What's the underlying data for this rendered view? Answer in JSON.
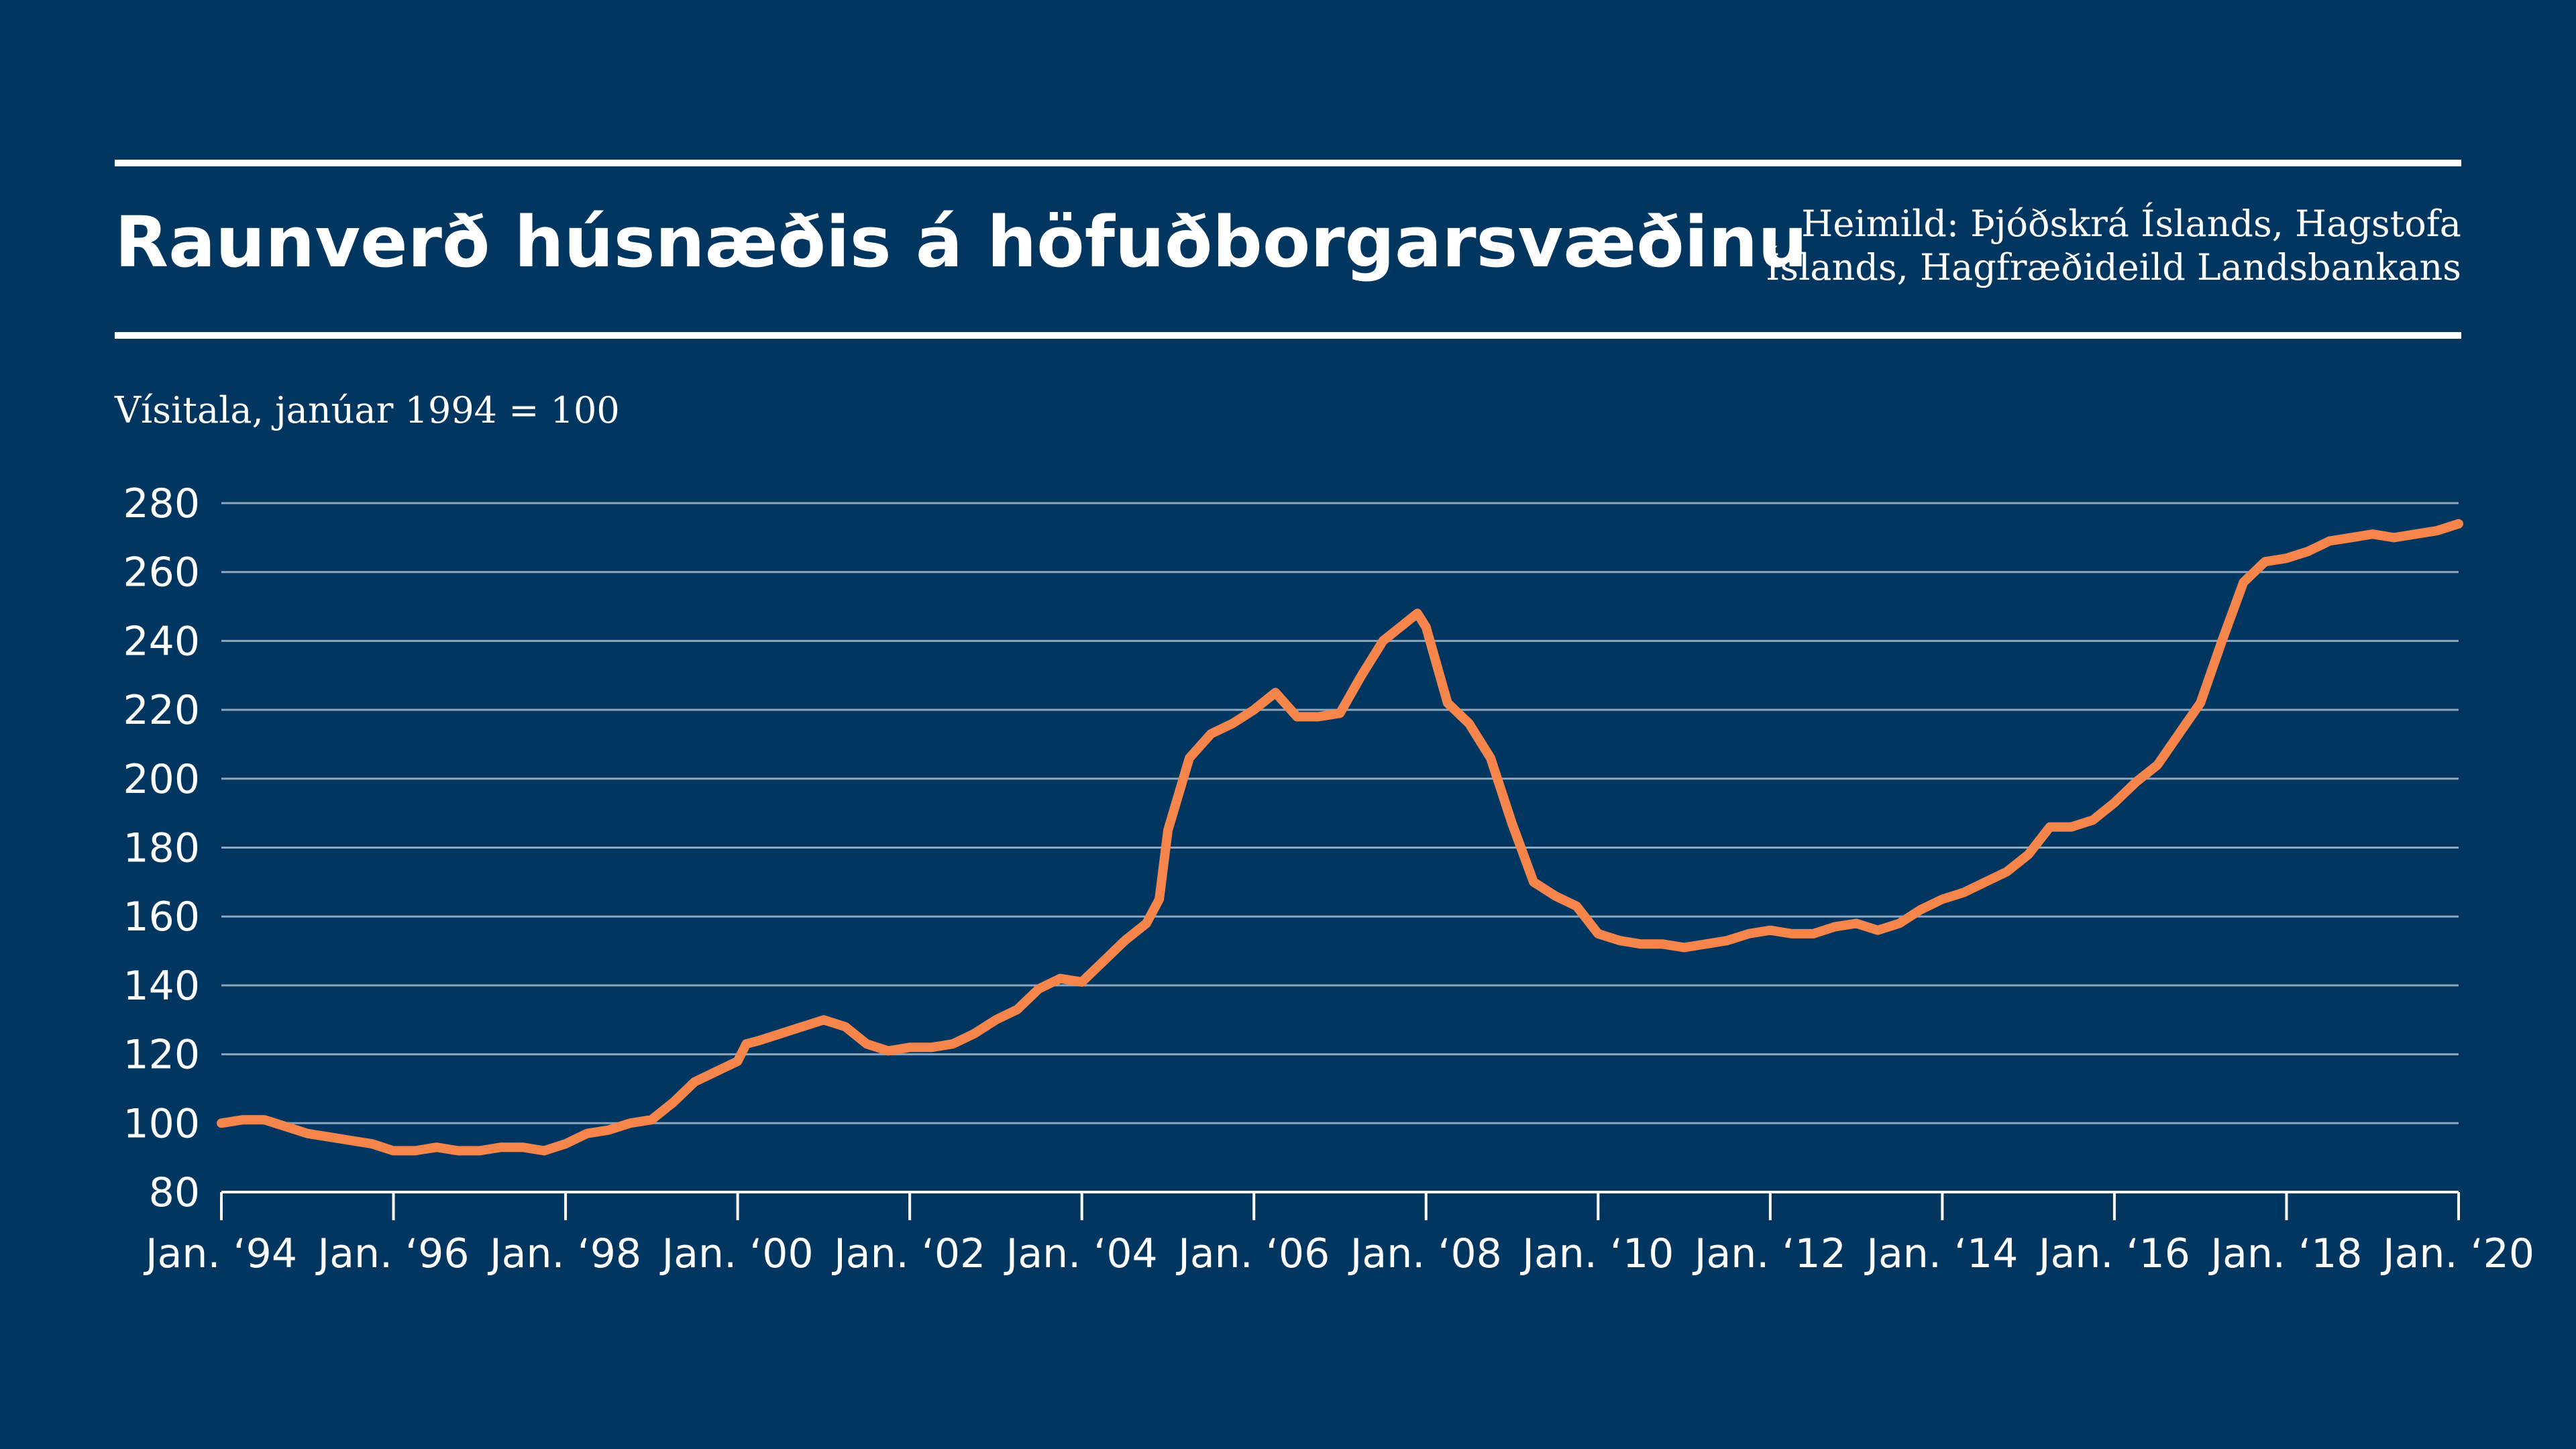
{
  "title": "Raunverð húsnæðis á höfuðborgarsvæðinu",
  "source_line1": "Heimild: Þjóðskrá Íslands, Hagstofa",
  "source_line2": "Íslands, Hagfræðideild Landsbankans",
  "colors": {
    "background": "#003660",
    "line": "#F5854A",
    "text": "#FFFFFF"
  },
  "chart_data": {
    "type": "line",
    "ylabel": "Vísitala, janúar 1994 = 100",
    "xlabel": "",
    "ylim": [
      80,
      280
    ],
    "xlim": [
      1994,
      2020
    ],
    "grid": true,
    "y_ticks": [
      "80",
      "100",
      "120",
      "140",
      "160",
      "180",
      "200",
      "220",
      "240",
      "260",
      "280"
    ],
    "x_ticks": [
      {
        "x": 1994,
        "label": "Jan. ‘94"
      },
      {
        "x": 1996,
        "label": "Jan. ‘96"
      },
      {
        "x": 1998,
        "label": "Jan. ‘98"
      },
      {
        "x": 2000,
        "label": "Jan. ‘00"
      },
      {
        "x": 2002,
        "label": "Jan. ‘02"
      },
      {
        "x": 2004,
        "label": "Jan. ‘04"
      },
      {
        "x": 2006,
        "label": "Jan. ‘06"
      },
      {
        "x": 2008,
        "label": "Jan. ‘08"
      },
      {
        "x": 2010,
        "label": "Jan. ‘10"
      },
      {
        "x": 2012,
        "label": "Jan. ‘12"
      },
      {
        "x": 2014,
        "label": "Jan. ‘14"
      },
      {
        "x": 2016,
        "label": "Jan. ‘16"
      },
      {
        "x": 2018,
        "label": "Jan. ‘18"
      },
      {
        "x": 2020,
        "label": "Jan. ‘20"
      }
    ],
    "series": [
      {
        "x": [
          1994.0,
          1994.25,
          1994.5,
          1994.75,
          1995.0,
          1995.25,
          1995.5,
          1995.75,
          1996.0,
          1996.25,
          1996.5,
          1996.75,
          1997.0,
          1997.25,
          1997.5,
          1997.75,
          1998.0,
          1998.25,
          1998.5,
          1998.75,
          1999.0,
          1999.25,
          1999.5,
          1999.75,
          2000.0,
          2000.1,
          2000.25,
          2000.5,
          2000.75,
          2001.0,
          2001.25,
          2001.5,
          2001.75,
          2002.0,
          2002.25,
          2002.5,
          2002.75,
          2003.0,
          2003.25,
          2003.5,
          2003.75,
          2004.0,
          2004.25,
          2004.5,
          2004.75,
          2004.9,
          2005.0,
          2005.25,
          2005.5,
          2005.75,
          2006.0,
          2006.25,
          2006.5,
          2006.75,
          2007.0,
          2007.25,
          2007.5,
          2007.75,
          2007.9,
          2008.0,
          2008.25,
          2008.5,
          2008.75,
          2009.0,
          2009.25,
          2009.5,
          2009.75,
          2010.0,
          2010.25,
          2010.5,
          2010.75,
          2011.0,
          2011.25,
          2011.5,
          2011.75,
          2012.0,
          2012.25,
          2012.5,
          2012.75,
          2013.0,
          2013.25,
          2013.5,
          2013.75,
          2014.0,
          2014.25,
          2014.5,
          2014.75,
          2015.0,
          2015.25,
          2015.5,
          2015.75,
          2016.0,
          2016.25,
          2016.5,
          2016.75,
          2017.0,
          2017.25,
          2017.5,
          2017.75,
          2018.0,
          2018.25,
          2018.5,
          2018.75,
          2019.0,
          2019.25,
          2019.5,
          2019.75,
          2020.0
        ],
        "values": [
          100,
          101,
          101,
          99,
          97,
          96,
          95,
          94,
          92,
          92,
          93,
          92,
          92,
          93,
          93,
          92,
          94,
          97,
          98,
          100,
          101,
          106,
          112,
          115,
          118,
          123,
          124,
          126,
          128,
          130,
          128,
          123,
          121,
          122,
          122,
          123,
          126,
          130,
          133,
          139,
          142,
          141,
          147,
          153,
          158,
          165,
          185,
          206,
          213,
          216,
          220,
          225,
          218,
          218,
          219,
          230,
          240,
          245,
          248,
          244,
          222,
          216,
          206,
          187,
          170,
          166,
          163,
          155,
          153,
          152,
          152,
          151,
          152,
          153,
          155,
          156,
          155,
          155,
          157,
          158,
          156,
          158,
          162,
          165,
          167,
          170,
          173,
          178,
          186,
          186,
          188,
          193,
          199,
          204,
          213,
          222,
          240,
          257,
          263,
          264,
          266,
          269,
          270,
          271,
          270,
          271,
          272,
          274
        ]
      }
    ]
  }
}
